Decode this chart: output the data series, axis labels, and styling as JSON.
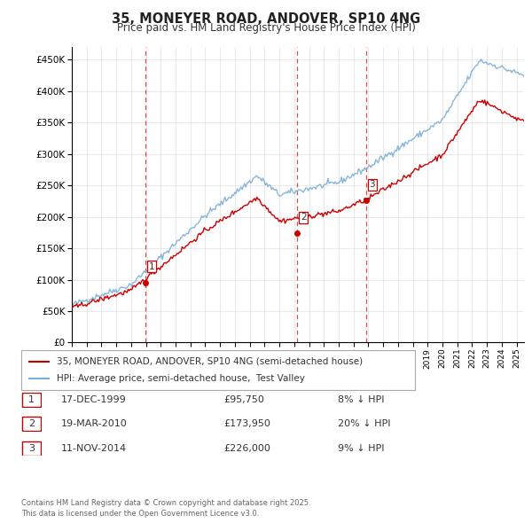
{
  "title": "35, MONEYER ROAD, ANDOVER, SP10 4NG",
  "subtitle": "Price paid vs. HM Land Registry's House Price Index (HPI)",
  "xlim_start": 1995.0,
  "xlim_end": 2025.5,
  "ylim_min": 0,
  "ylim_max": 470000,
  "yticks": [
    0,
    50000,
    100000,
    150000,
    200000,
    250000,
    300000,
    350000,
    400000,
    450000
  ],
  "sale_dates": [
    1999.96,
    2010.22,
    2014.86
  ],
  "sale_prices": [
    95750,
    173950,
    226000
  ],
  "sale_labels": [
    "1",
    "2",
    "3"
  ],
  "dashed_line_color": "#cc0000",
  "red_line_color": "#cc0000",
  "blue_line_color": "#7aaed6",
  "legend_red_label": "35, MONEYER ROAD, ANDOVER, SP10 4NG (semi-detached house)",
  "legend_blue_label": "HPI: Average price, semi-detached house,  Test Valley",
  "table_rows": [
    [
      "1",
      "17-DEC-1999",
      "£95,750",
      "8% ↓ HPI"
    ],
    [
      "2",
      "19-MAR-2010",
      "£173,950",
      "20% ↓ HPI"
    ],
    [
      "3",
      "11-NOV-2014",
      "£226,000",
      "9% ↓ HPI"
    ]
  ],
  "footnote": "Contains HM Land Registry data © Crown copyright and database right 2025.\nThis data is licensed under the Open Government Licence v3.0.",
  "background_color": "#ffffff",
  "grid_color": "#e0e0e0"
}
